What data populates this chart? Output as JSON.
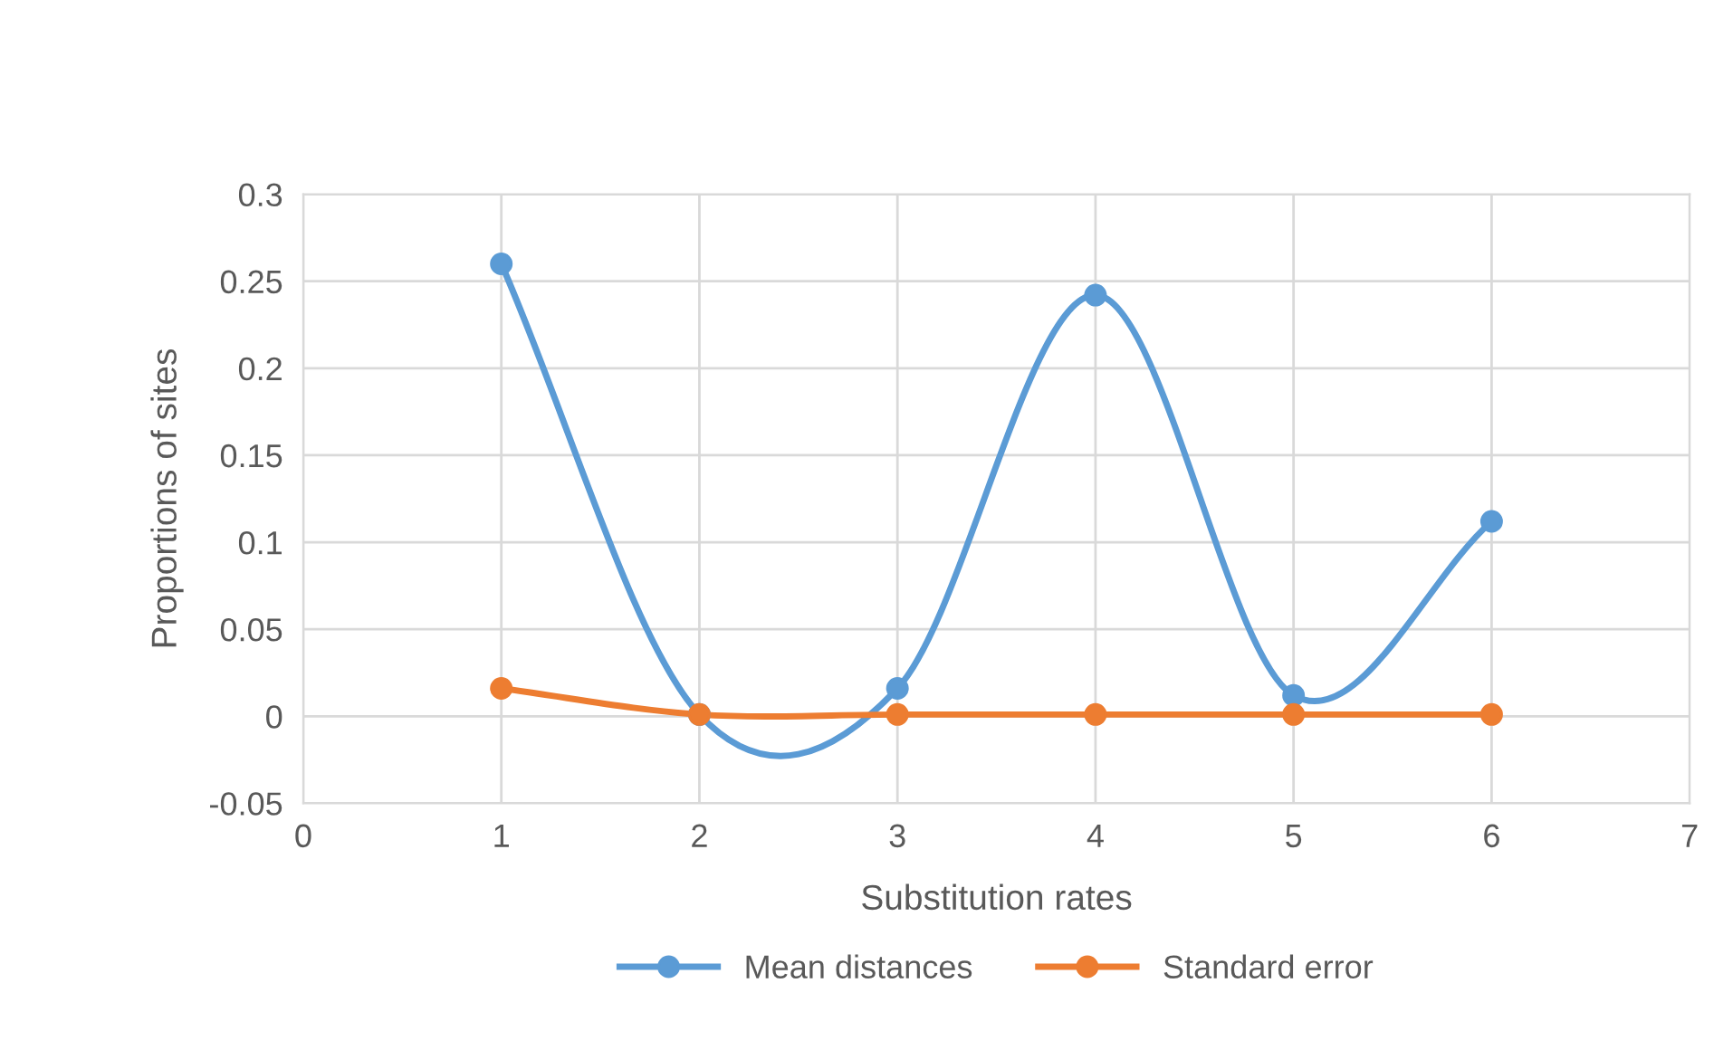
{
  "chart_data": {
    "type": "line",
    "xlabel": "Substitution rates",
    "ylabel": "Proportions of sites",
    "x": [
      1,
      2,
      3,
      4,
      5,
      6
    ],
    "series": [
      {
        "name": "Mean distances",
        "color": "#5b9bd5",
        "values": [
          0.26,
          0.001,
          0.016,
          0.242,
          0.012,
          0.112
        ]
      },
      {
        "name": "Standard error",
        "color": "#ed7d31",
        "values": [
          0.016,
          0.001,
          0.001,
          0.001,
          0.001,
          0.001
        ]
      }
    ],
    "xlim": [
      0,
      7
    ],
    "xticks": [
      0,
      1,
      2,
      3,
      4,
      5,
      6,
      7
    ],
    "ylim": [
      -0.05,
      0.3
    ],
    "yticks": [
      -0.05,
      0,
      0.05,
      0.1,
      0.15,
      0.2,
      0.25,
      0.3
    ],
    "grid": true,
    "legend": "bottom",
    "marker": "circle",
    "line_style": "solid"
  }
}
